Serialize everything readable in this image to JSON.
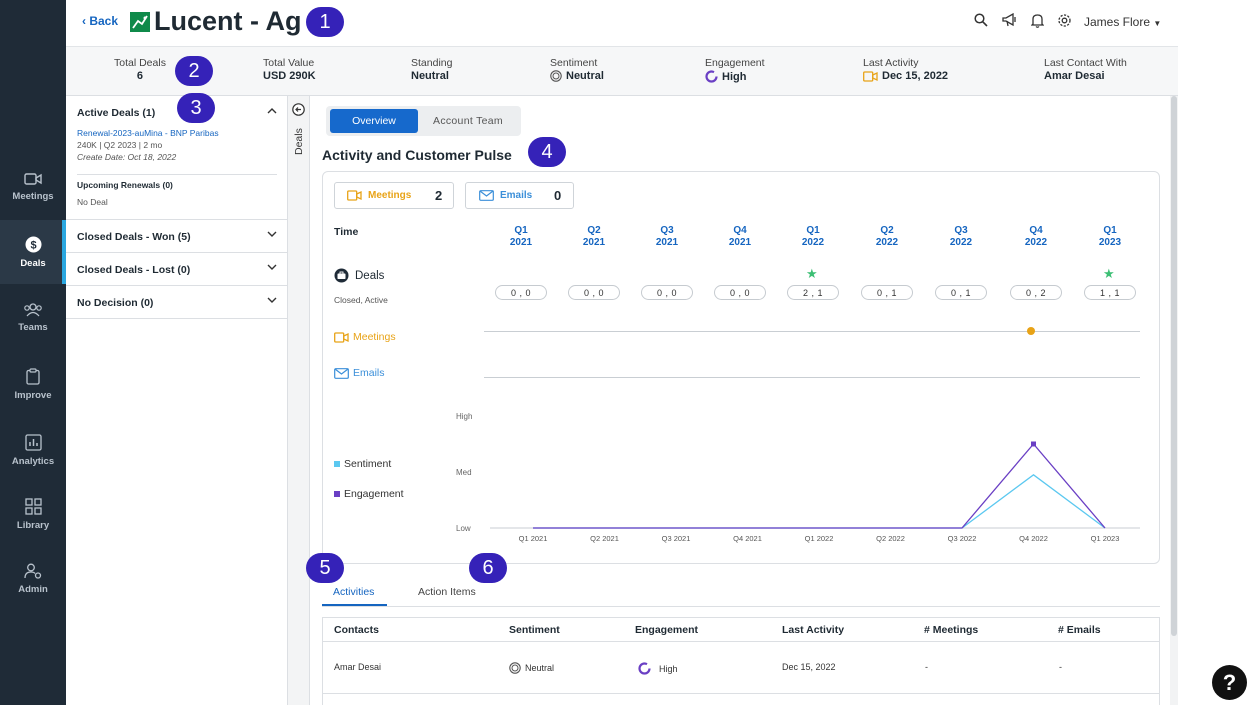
{
  "nav": {
    "items": [
      {
        "label": "Meetings",
        "icon": "video-icon"
      },
      {
        "label": "Deals",
        "icon": "dollar-icon",
        "active": true
      },
      {
        "label": "Teams",
        "icon": "people-icon"
      },
      {
        "label": "Improve",
        "icon": "clipboard-icon"
      },
      {
        "label": "Analytics",
        "icon": "bar-chart-icon"
      },
      {
        "label": "Library",
        "icon": "grid-icon"
      },
      {
        "label": "Admin",
        "icon": "user-gear-icon"
      }
    ]
  },
  "header": {
    "back_label": "Back",
    "title": "Lucent - Ag",
    "user_name": "James Flore"
  },
  "summary": {
    "total_deals_label": "Total Deals",
    "total_deals_value": "6",
    "total_value_label": "Total Value",
    "total_value_value": "USD 290K",
    "standing_label": "Standing",
    "standing_value": "Neutral",
    "sentiment_label": "Sentiment",
    "sentiment_value": "Neutral",
    "engagement_label": "Engagement",
    "engagement_value": "High",
    "last_activity_label": "Last Activity",
    "last_activity_value": "Dec 15, 2022",
    "last_contact_label": "Last Contact With",
    "last_contact_value": "Amar Desai"
  },
  "deals_panel": {
    "active_header": "Active Deals (1)",
    "active_deal": {
      "name": "Renewal-2023-auMina - BNP Paribas",
      "meta": "240K | Q2 2023 | 2 mo",
      "create_date": "Create Date: Oct 18, 2022"
    },
    "upcoming_header": "Upcoming Renewals (0)",
    "upcoming_empty": "No Deal",
    "won_header": "Closed Deals - Won (5)",
    "lost_header": "Closed Deals - Lost (0)",
    "no_decision_header": "No Decision (0)",
    "strip_label": "Deals"
  },
  "main": {
    "tabs": {
      "overview": "Overview",
      "account_team": "Account Team"
    },
    "section_title": "Activity and Customer Pulse",
    "meetings_chip_label": "Meetings",
    "meetings_chip_count": "2",
    "emails_chip_label": "Emails",
    "emails_chip_count": "0",
    "time_label": "Time",
    "quarters": [
      {
        "q": "Q1",
        "y": "2021"
      },
      {
        "q": "Q2",
        "y": "2021"
      },
      {
        "q": "Q3",
        "y": "2021"
      },
      {
        "q": "Q4",
        "y": "2021"
      },
      {
        "q": "Q1",
        "y": "2022"
      },
      {
        "q": "Q2",
        "y": "2022"
      },
      {
        "q": "Q3",
        "y": "2022"
      },
      {
        "q": "Q4",
        "y": "2022"
      },
      {
        "q": "Q1",
        "y": "2023"
      }
    ],
    "deals_row_label": "Deals",
    "deals_row_sublabel": "Closed, Active",
    "deal_pills": [
      "0 , 0",
      "0 , 0",
      "0 , 0",
      "0 , 0",
      "2 , 1",
      "0 , 1",
      "0 , 1",
      "0 , 2",
      "1 , 1"
    ],
    "deal_stars": [
      false,
      false,
      false,
      false,
      true,
      false,
      false,
      false,
      true
    ],
    "meetings_row_label": "Meetings",
    "emails_row_label": "Emails",
    "sentiment_legend": "Sentiment",
    "engagement_legend": "Engagement",
    "colors": {
      "sentiment": "#5bc8f0",
      "engagement": "#6a3fc4",
      "meetings": "#e8a317",
      "emails": "#3b8fd9"
    }
  },
  "chart_data": {
    "type": "line",
    "x": [
      "Q1 2021",
      "Q2 2021",
      "Q3 2021",
      "Q4 2021",
      "Q1 2022",
      "Q2 2022",
      "Q3 2022",
      "Q4 2022",
      "Q1 2023"
    ],
    "y_levels": [
      "Low",
      "Med",
      "High"
    ],
    "series": [
      {
        "name": "Sentiment",
        "values": [
          0,
          0,
          0,
          0,
          0,
          0,
          0,
          0.95,
          0
        ]
      },
      {
        "name": "Engagement",
        "values": [
          0,
          0,
          0,
          0,
          0,
          0,
          0,
          1.5,
          0
        ]
      }
    ],
    "ylim": [
      0,
      2
    ]
  },
  "activity_tabs": {
    "activities": "Activities",
    "action_items": "Action Items"
  },
  "table": {
    "headers": [
      "Contacts",
      "Sentiment",
      "Engagement",
      "Last Activity",
      "# Meetings",
      "# Emails"
    ],
    "rows": [
      {
        "contact": "Amar Desai",
        "sentiment": "Neutral",
        "engagement": "High",
        "last_activity": "Dec 15, 2022",
        "meetings": "-",
        "emails": "-"
      }
    ]
  },
  "badges": [
    "1",
    "2",
    "3",
    "4",
    "5",
    "6"
  ],
  "help_label": "?"
}
